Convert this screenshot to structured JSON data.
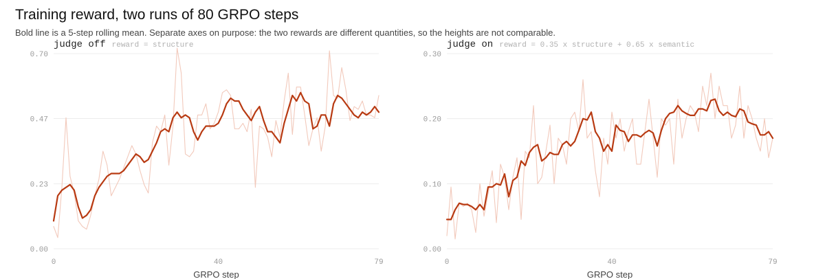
{
  "title": "Training reward, two runs of 80 GRPO steps",
  "subtitle": "Bold line is a 5-step rolling mean. Separate axes on purpose: the two rewards are different quantities, so the heights are not comparable.",
  "colors": {
    "raw_line": "#f2c9bb",
    "mean_line": "#b83a12",
    "grid": "#ececec",
    "tick_text": "#9a9a9a",
    "label_text": "#222222",
    "formula_text": "#b0b0b0"
  },
  "chart_data": [
    {
      "type": "line",
      "panel_label": "judge off",
      "formula": "reward = structure",
      "xlabel": "GRPO step",
      "ylabel": "",
      "xlim": [
        0,
        79
      ],
      "ylim": [
        0,
        0.7
      ],
      "xticks": [
        "0",
        "40",
        "79"
      ],
      "yticks": [
        "0.00",
        "0.23",
        "0.47",
        "0.70"
      ],
      "ytick_values": [
        0,
        0.233,
        0.467,
        0.7
      ],
      "grid": true,
      "series": [
        {
          "values": [
            0.08,
            0.04,
            0.22,
            0.47,
            0.26,
            0.2,
            0.1,
            0.08,
            0.07,
            0.12,
            0.19,
            0.25,
            0.35,
            0.3,
            0.19,
            0.22,
            0.25,
            0.29,
            0.33,
            0.37,
            0.34,
            0.28,
            0.23,
            0.2,
            0.38,
            0.44,
            0.42,
            0.48,
            0.3,
            0.44,
            0.72,
            0.63,
            0.34,
            0.33,
            0.35,
            0.48,
            0.48,
            0.52,
            0.43,
            0.45,
            0.49,
            0.56,
            0.57,
            0.55,
            0.43,
            0.43,
            0.45,
            0.42,
            0.5,
            0.22,
            0.44,
            0.43,
            0.4,
            0.33,
            0.46,
            0.4,
            0.53,
            0.63,
            0.41,
            0.58,
            0.58,
            0.48,
            0.37,
            0.43,
            0.47,
            0.35,
            0.44,
            0.71,
            0.55,
            0.54,
            0.65,
            0.57,
            0.46,
            0.51,
            0.5,
            0.53,
            0.48,
            0.48,
            0.47,
            0.55
          ]
        },
        {
          "values": [
            0.1,
            0.19,
            0.21,
            0.22,
            0.23,
            0.21,
            0.15,
            0.11,
            0.12,
            0.14,
            0.19,
            0.22,
            0.24,
            0.26,
            0.27,
            0.27,
            0.27,
            0.28,
            0.3,
            0.32,
            0.34,
            0.33,
            0.31,
            0.32,
            0.35,
            0.38,
            0.42,
            0.43,
            0.42,
            0.47,
            0.49,
            0.47,
            0.48,
            0.47,
            0.42,
            0.39,
            0.42,
            0.44,
            0.44,
            0.44,
            0.45,
            0.48,
            0.52,
            0.54,
            0.53,
            0.53,
            0.5,
            0.48,
            0.46,
            0.49,
            0.51,
            0.46,
            0.42,
            0.42,
            0.4,
            0.38,
            0.45,
            0.5,
            0.55,
            0.53,
            0.56,
            0.53,
            0.52,
            0.43,
            0.44,
            0.48,
            0.48,
            0.44,
            0.52,
            0.55,
            0.54,
            0.52,
            0.5,
            0.48,
            0.47,
            0.49,
            0.48,
            0.49,
            0.51,
            0.49
          ]
        }
      ]
    },
    {
      "type": "line",
      "panel_label": "judge on",
      "formula": "reward = 0.35 x structure + 0.65 x semantic",
      "xlabel": "GRPO step",
      "ylabel": "",
      "xlim": [
        0,
        79
      ],
      "ylim": [
        0,
        0.3
      ],
      "xticks": [
        "0",
        "40",
        "79"
      ],
      "yticks": [
        "0.00",
        "0.10",
        "0.20",
        "0.30"
      ],
      "ytick_values": [
        0,
        0.1,
        0.2,
        0.3
      ],
      "grid": true,
      "series": [
        {
          "values": [
            0.02,
            0.095,
            0.015,
            0.07,
            0.065,
            0.07,
            0.06,
            0.025,
            0.1,
            0.05,
            0.085,
            0.12,
            0.04,
            0.13,
            0.11,
            0.06,
            0.11,
            0.14,
            0.045,
            0.15,
            0.14,
            0.22,
            0.1,
            0.11,
            0.15,
            0.19,
            0.1,
            0.17,
            0.16,
            0.13,
            0.2,
            0.21,
            0.18,
            0.26,
            0.17,
            0.18,
            0.12,
            0.08,
            0.17,
            0.13,
            0.21,
            0.17,
            0.2,
            0.15,
            0.18,
            0.2,
            0.13,
            0.13,
            0.18,
            0.23,
            0.17,
            0.11,
            0.2,
            0.19,
            0.2,
            0.13,
            0.23,
            0.17,
            0.2,
            0.22,
            0.21,
            0.18,
            0.25,
            0.22,
            0.27,
            0.2,
            0.25,
            0.22,
            0.22,
            0.17,
            0.19,
            0.25,
            0.17,
            0.22,
            0.2,
            0.17,
            0.15,
            0.2,
            0.14,
            0.17
          ]
        },
        {
          "values": [
            0.045,
            0.045,
            0.06,
            0.07,
            0.068,
            0.068,
            0.065,
            0.06,
            0.068,
            0.06,
            0.095,
            0.095,
            0.1,
            0.098,
            0.115,
            0.08,
            0.105,
            0.11,
            0.135,
            0.128,
            0.148,
            0.156,
            0.16,
            0.135,
            0.14,
            0.148,
            0.145,
            0.145,
            0.16,
            0.165,
            0.158,
            0.165,
            0.182,
            0.2,
            0.198,
            0.21,
            0.18,
            0.17,
            0.15,
            0.16,
            0.15,
            0.19,
            0.182,
            0.18,
            0.165,
            0.175,
            0.175,
            0.172,
            0.178,
            0.182,
            0.178,
            0.158,
            0.182,
            0.2,
            0.208,
            0.21,
            0.22,
            0.212,
            0.208,
            0.205,
            0.205,
            0.215,
            0.215,
            0.212,
            0.228,
            0.23,
            0.212,
            0.205,
            0.21,
            0.205,
            0.203,
            0.215,
            0.212,
            0.195,
            0.192,
            0.19,
            0.175,
            0.175,
            0.18,
            0.17
          ]
        }
      ]
    }
  ]
}
